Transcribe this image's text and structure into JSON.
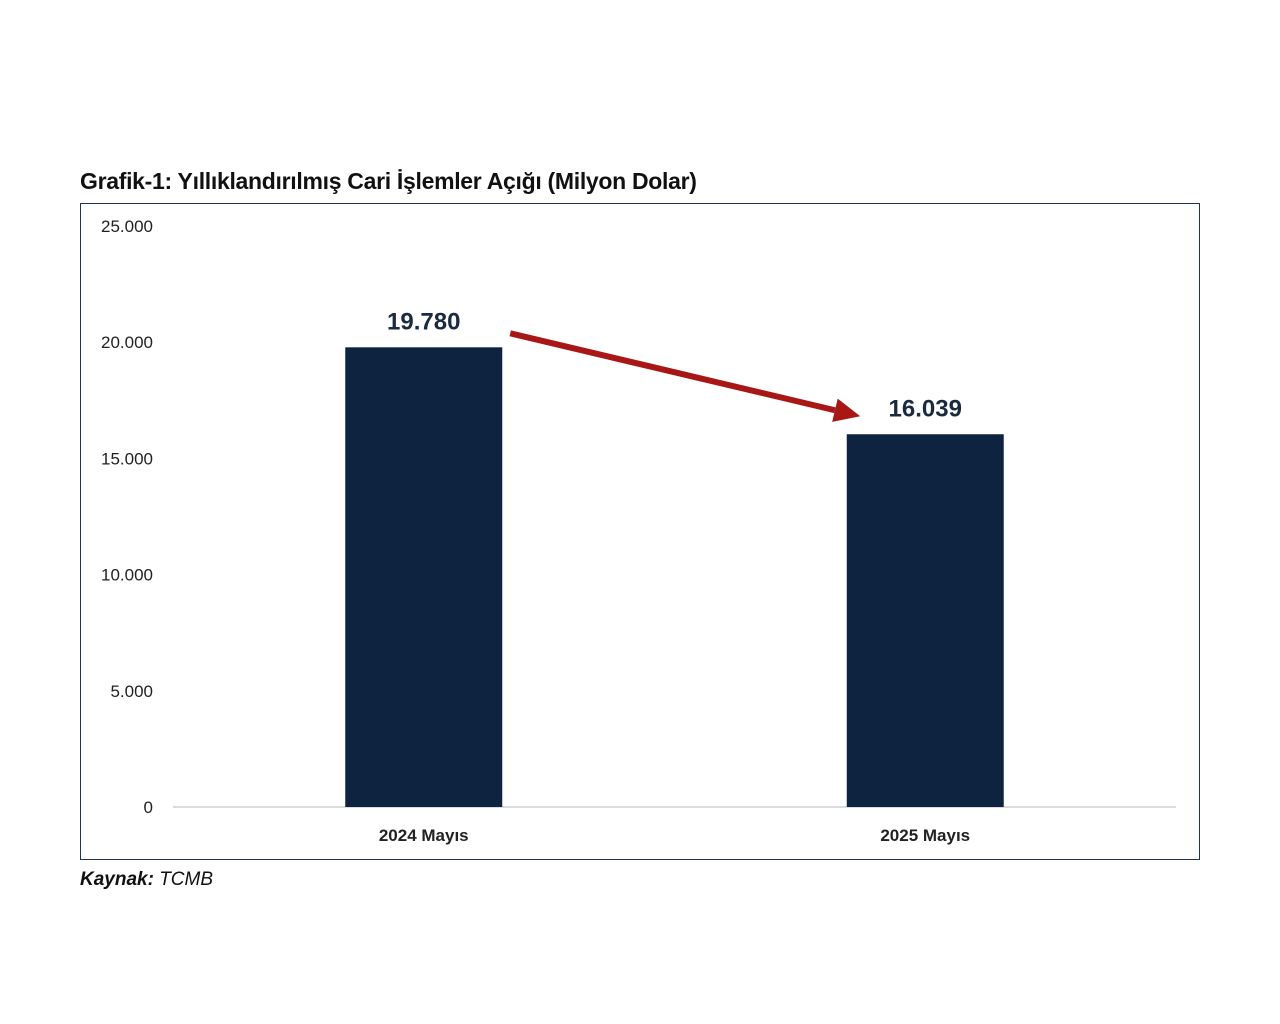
{
  "chart_data": {
    "type": "bar",
    "title": "Grafik-1: Yıllıklandırılmış Cari İşlemler Açığı (Milyon Dolar)",
    "categories": [
      "2024 Mayıs",
      "2025 Mayıs"
    ],
    "values": [
      19780,
      16039
    ],
    "data_labels": [
      "19.780",
      "16.039"
    ],
    "ylim": [
      0,
      25000
    ],
    "yticks": [
      0,
      5000,
      10000,
      15000,
      20000,
      25000
    ],
    "ytick_labels": [
      "0",
      "5.000",
      "10.000",
      "15.000",
      "20.000",
      "25.000"
    ],
    "xlabel": "",
    "ylabel": "",
    "grid": false,
    "bar_color": "#0e2340",
    "annotation": {
      "type": "arrow",
      "from": "2024 Mayıs",
      "to": "2025 Mayıs",
      "color": "#a81616"
    }
  },
  "source": {
    "label": "Kaynak:",
    "value": "TCMB"
  }
}
